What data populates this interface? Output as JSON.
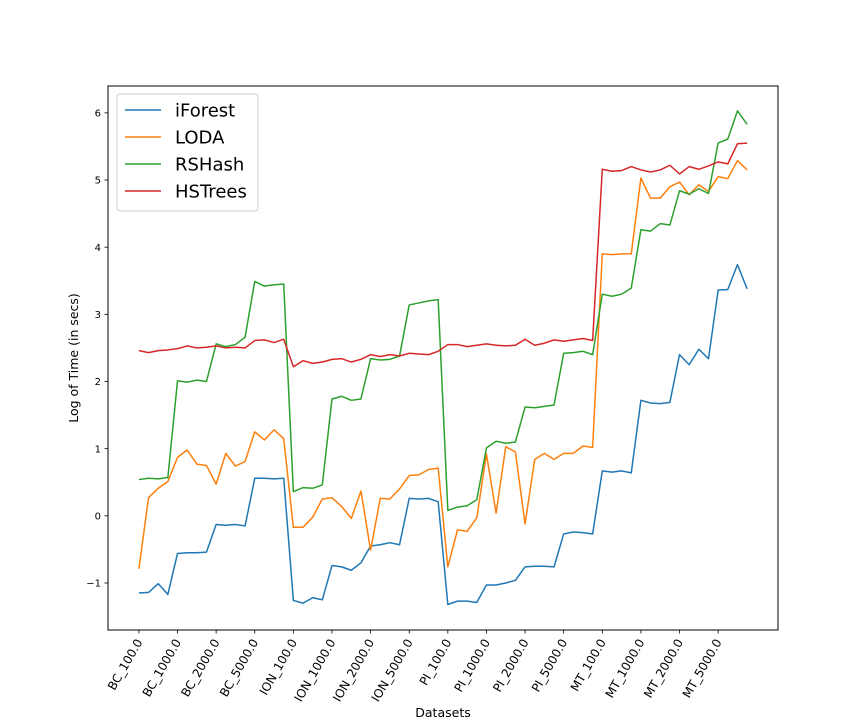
{
  "chart_data": {
    "type": "line",
    "xlabel": "Datasets",
    "ylabel": "Log of Time (in secs)",
    "ylim": [
      -1.7,
      6.4
    ],
    "yticks": [
      -1,
      0,
      1,
      2,
      3,
      4,
      5,
      6
    ],
    "ytick_labels": [
      "−1",
      "0",
      "1",
      "2",
      "3",
      "4",
      "5",
      "6"
    ],
    "grid": false,
    "legend_position": "top-left",
    "tick_positions": [
      0,
      4,
      8,
      12,
      16,
      20,
      24,
      28,
      32,
      36,
      40,
      44,
      48,
      52,
      56,
      60
    ],
    "tick_labels": [
      "BC_100.0",
      "BC_1000.0",
      "BC_2000.0",
      "BC_5000.0",
      "ION_100.0",
      "ION_1000.0",
      "ION_2000.0",
      "ION_5000.0",
      "PI_100.0",
      "PI_1000.0",
      "PI_2000.0",
      "PI_5000.0",
      "MT_100.0",
      "MT_1000.0",
      "MT_2000.0",
      "MT_5000.0"
    ],
    "x": [
      0,
      1,
      2,
      3,
      4,
      5,
      6,
      7,
      8,
      9,
      10,
      11,
      12,
      13,
      14,
      15,
      16,
      17,
      18,
      19,
      20,
      21,
      22,
      23,
      24,
      25,
      26,
      27,
      28,
      29,
      30,
      31,
      32,
      33,
      34,
      35,
      36,
      37,
      38,
      39,
      40,
      41,
      42,
      43,
      44,
      45,
      46,
      47,
      48,
      49,
      50,
      51,
      52,
      53,
      54,
      55,
      56,
      57,
      58,
      59,
      60,
      61,
      62,
      63
    ],
    "series": [
      {
        "name": "iForest",
        "color": "#1f77b4",
        "values": [
          -1.15,
          -1.14,
          -1.01,
          -1.17,
          -0.56,
          -0.55,
          -0.55,
          -0.54,
          -0.13,
          -0.14,
          -0.13,
          -0.15,
          0.56,
          0.56,
          0.55,
          0.56,
          -1.26,
          -1.3,
          -1.22,
          -1.25,
          -0.74,
          -0.76,
          -0.81,
          -0.7,
          -0.45,
          -0.43,
          -0.4,
          -0.43,
          0.26,
          0.25,
          0.26,
          0.21,
          -1.32,
          -1.27,
          -1.27,
          -1.29,
          -1.03,
          -1.03,
          -1.0,
          -0.96,
          -0.76,
          -0.75,
          -0.75,
          -0.76,
          -0.27,
          -0.24,
          -0.25,
          -0.27,
          0.67,
          0.65,
          0.67,
          0.64,
          1.72,
          1.68,
          1.67,
          1.69,
          2.4,
          2.25,
          2.48,
          2.34,
          3.36,
          3.37,
          3.74,
          3.38
        ]
      },
      {
        "name": "LODA",
        "color": "#ff7f0e",
        "values": [
          -0.79,
          0.27,
          0.41,
          0.51,
          0.87,
          0.98,
          0.77,
          0.75,
          0.47,
          0.93,
          0.74,
          0.81,
          1.25,
          1.13,
          1.28,
          1.15,
          -0.17,
          -0.17,
          -0.02,
          0.25,
          0.27,
          0.14,
          -0.04,
          0.37,
          -0.51,
          0.26,
          0.25,
          0.4,
          0.6,
          0.61,
          0.69,
          0.71,
          -0.76,
          -0.21,
          -0.23,
          -0.03,
          0.92,
          0.04,
          1.03,
          0.95,
          -0.12,
          0.84,
          0.93,
          0.84,
          0.93,
          0.93,
          1.04,
          1.02,
          3.9,
          3.89,
          3.9,
          3.9,
          5.03,
          4.73,
          4.73,
          4.9,
          4.97,
          4.78,
          4.93,
          4.83,
          5.05,
          5.02,
          5.29,
          5.15
        ]
      },
      {
        "name": "RSHash",
        "color": "#2ca02c",
        "values": [
          0.54,
          0.56,
          0.55,
          0.57,
          2.01,
          1.99,
          2.02,
          2.0,
          2.56,
          2.52,
          2.55,
          2.66,
          3.49,
          3.42,
          3.44,
          3.45,
          0.36,
          0.42,
          0.41,
          0.46,
          1.74,
          1.78,
          1.72,
          1.74,
          2.34,
          2.32,
          2.33,
          2.38,
          3.14,
          3.17,
          3.2,
          3.22,
          0.08,
          0.13,
          0.15,
          0.24,
          1.01,
          1.11,
          1.08,
          1.1,
          1.62,
          1.61,
          1.63,
          1.65,
          2.42,
          2.43,
          2.45,
          2.4,
          3.3,
          3.27,
          3.3,
          3.39,
          4.26,
          4.24,
          4.35,
          4.33,
          4.84,
          4.79,
          4.87,
          4.8,
          5.55,
          5.61,
          6.03,
          5.83
        ]
      },
      {
        "name": "HSTrees",
        "color": "#d62728",
        "values": [
          2.46,
          2.43,
          2.46,
          2.47,
          2.49,
          2.53,
          2.5,
          2.51,
          2.53,
          2.5,
          2.51,
          2.5,
          2.61,
          2.62,
          2.58,
          2.63,
          2.22,
          2.31,
          2.27,
          2.29,
          2.33,
          2.34,
          2.29,
          2.33,
          2.4,
          2.37,
          2.4,
          2.38,
          2.42,
          2.41,
          2.4,
          2.45,
          2.55,
          2.55,
          2.52,
          2.54,
          2.56,
          2.54,
          2.53,
          2.54,
          2.63,
          2.54,
          2.57,
          2.62,
          2.6,
          2.62,
          2.64,
          2.61,
          5.16,
          5.13,
          5.14,
          5.2,
          5.15,
          5.12,
          5.15,
          5.22,
          5.09,
          5.2,
          5.16,
          5.21,
          5.27,
          5.24,
          5.54,
          5.55
        ]
      }
    ]
  }
}
